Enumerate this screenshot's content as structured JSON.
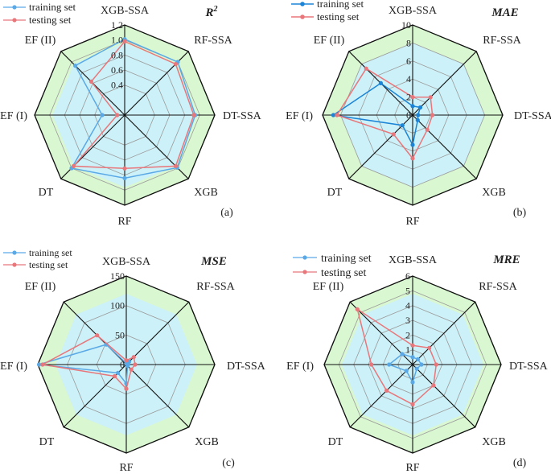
{
  "figure": {
    "background": "#ffffff",
    "training_color": "#5aa9e6",
    "testing_color": "#e8767a",
    "grid_color": "#9a9a9a",
    "axis_color": "#111111",
    "fill_outer": "#d9f7d1",
    "fill_inner": "#cdf1f8"
  },
  "chart_data": [
    {
      "type": "radar",
      "panel": "(a)",
      "title": "R",
      "title_sup": "2",
      "axes": [
        "XGB-SSA",
        "RF-SSA",
        "DT-SSA",
        "XGB",
        "RF",
        "DT",
        "EF (I)",
        "EF (II)"
      ],
      "rmin": 0,
      "rmax": 1.2,
      "ticks": [
        0.4,
        0.6,
        0.8,
        1.0,
        1.2
      ],
      "tick_labels": [
        "0.4",
        "0.6",
        "0.8",
        "1.0",
        "1.2"
      ],
      "legend": [
        "training set",
        "testing set"
      ],
      "series": [
        {
          "name": "training set",
          "values": [
            1.01,
            1.0,
            0.94,
            0.99,
            0.84,
            1.0,
            0.3,
            0.93
          ]
        },
        {
          "name": "testing set",
          "values": [
            0.98,
            0.96,
            0.92,
            0.96,
            0.71,
            0.96,
            0.1,
            0.63
          ]
        }
      ]
    },
    {
      "type": "radar",
      "panel": "(b)",
      "title": "MAE",
      "title_sup": "",
      "axes": [
        "XGB-SSA",
        "RF-SSA",
        "DT-SSA",
        "XGB",
        "RF",
        "DT",
        "EF (I)",
        "EF (II)"
      ],
      "rmin": 0,
      "rmax": 10,
      "ticks": [
        0,
        2,
        4,
        6,
        8,
        10
      ],
      "tick_labels": [
        "0",
        "2",
        "4",
        "6",
        "8",
        "10"
      ],
      "legend": [
        "training set",
        "testing set"
      ],
      "series": [
        {
          "name": "training set",
          "values": [
            1.0,
            1.2,
            0.6,
            0.8,
            3.3,
            1.6,
            8.8,
            5.0
          ]
        },
        {
          "name": "testing set",
          "values": [
            2.0,
            2.8,
            2.2,
            2.3,
            4.8,
            3.0,
            8.4,
            7.3
          ]
        }
      ]
    },
    {
      "type": "radar",
      "panel": "(c)",
      "title": "MSE",
      "title_sup": "",
      "axes": [
        "XGB-SSA",
        "RF-SSA",
        "DT-SSA",
        "XGB",
        "RF",
        "DT",
        "EF (I)",
        "EF (II)"
      ],
      "rmin": 0,
      "rmax": 150,
      "ticks": [
        0,
        50,
        100,
        150
      ],
      "tick_labels": [
        "0",
        "50",
        "100",
        "150"
      ],
      "legend": [
        "training set",
        "testing set"
      ],
      "series": [
        {
          "name": "training set",
          "values": [
            2,
            7,
            3,
            3,
            32,
            20,
            148,
            48
          ]
        },
        {
          "name": "testing set",
          "values": [
            7,
            18,
            15,
            12,
            41,
            28,
            142,
            70
          ]
        }
      ]
    },
    {
      "type": "radar",
      "panel": "(d)",
      "title": "MRE",
      "title_sup": "",
      "axes": [
        "XGB-SSA",
        "RF-SSA",
        "DT-SSA",
        "XGB",
        "RF",
        "DT",
        "EF (I)",
        "EF (II)"
      ],
      "rmin": 0,
      "rmax": 6,
      "ticks": [
        1,
        2,
        3,
        4,
        5,
        6
      ],
      "tick_labels": [
        "1",
        "2",
        "3",
        "4",
        "5",
        "6"
      ],
      "legend": [
        "training set",
        "testing set"
      ],
      "series": [
        {
          "name": "training set",
          "values": [
            0.5,
            0.5,
            0.6,
            0.4,
            1.2,
            0.6,
            1.6,
            1.0
          ]
        },
        {
          "name": "testing set",
          "values": [
            1.3,
            1.6,
            1.6,
            2.0,
            2.7,
            2.5,
            2.8,
            5.3
          ]
        }
      ]
    }
  ]
}
